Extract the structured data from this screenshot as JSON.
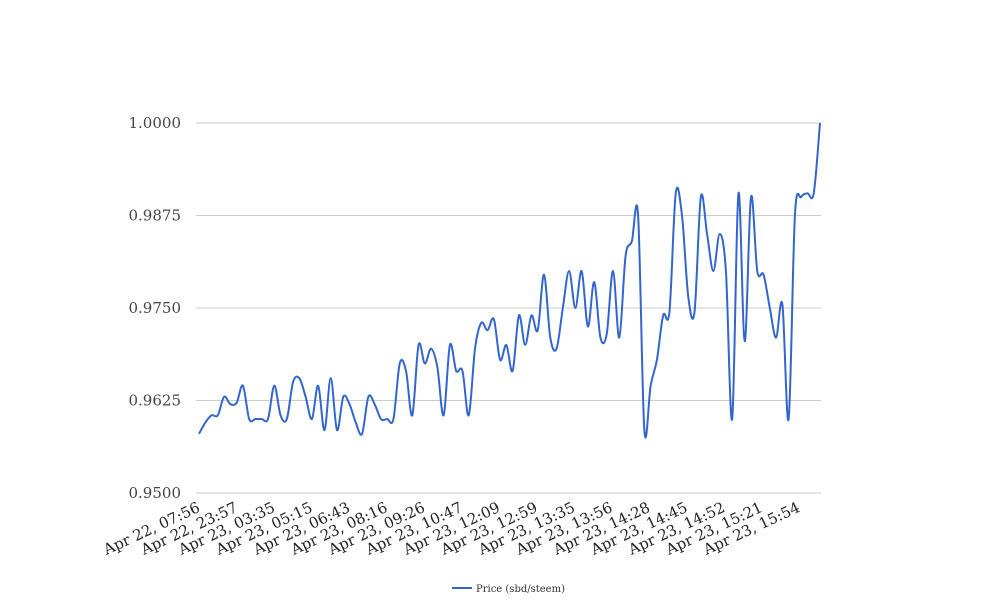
{
  "chart_data": {
    "type": "line",
    "title": "",
    "xlabel": "",
    "ylabel": "",
    "ylim": [
      0.95,
      1.0
    ],
    "yticks": [
      "0.9500",
      "0.9625",
      "0.9750",
      "0.9875",
      "1.0000"
    ],
    "grid": true,
    "legend_position": "bottom",
    "line_color": "#3366cc",
    "x_tick_labels": [
      "Apr 22, 07:56",
      "Apr 22, 23:57",
      "Apr 23, 03:35",
      "Apr 23, 05:15",
      "Apr 23, 06:43",
      "Apr 23, 08:16",
      "Apr 23, 09:26",
      "Apr 23, 10:47",
      "Apr 23, 12:09",
      "Apr 23, 12:59",
      "Apr 23, 13:35",
      "Apr 23, 13:56",
      "Apr 23, 14:28",
      "Apr 23, 14:45",
      "Apr 23, 14:52",
      "Apr 23, 15:21",
      "Apr 23, 15:54"
    ],
    "series": [
      {
        "name": "Price (sbd/steem)",
        "values": [
          0.958,
          0.9595,
          0.9605,
          0.9605,
          0.963,
          0.962,
          0.9622,
          0.9645,
          0.96,
          0.96,
          0.96,
          0.96,
          0.9645,
          0.9605,
          0.96,
          0.965,
          0.9655,
          0.963,
          0.96,
          0.9645,
          0.9585,
          0.9655,
          0.9585,
          0.963,
          0.962,
          0.9595,
          0.958,
          0.963,
          0.962,
          0.96,
          0.96,
          0.96,
          0.9675,
          0.9665,
          0.9605,
          0.97,
          0.9675,
          0.9695,
          0.967,
          0.9605,
          0.97,
          0.9665,
          0.9665,
          0.9605,
          0.9695,
          0.973,
          0.972,
          0.9735,
          0.968,
          0.97,
          0.9665,
          0.974,
          0.97,
          0.974,
          0.972,
          0.9795,
          0.971,
          0.9695,
          0.975,
          0.98,
          0.975,
          0.98,
          0.9725,
          0.9785,
          0.971,
          0.9715,
          0.98,
          0.971,
          0.982,
          0.984,
          0.9875,
          0.9585,
          0.9645,
          0.968,
          0.974,
          0.9745,
          0.9905,
          0.9875,
          0.9765,
          0.9745,
          0.99,
          0.985,
          0.98,
          0.985,
          0.98,
          0.96,
          0.9905,
          0.9705,
          0.99,
          0.98,
          0.9795,
          0.975,
          0.971,
          0.9755,
          0.96,
          0.9875,
          0.99,
          0.9905,
          0.9905,
          1.0
        ]
      }
    ]
  }
}
